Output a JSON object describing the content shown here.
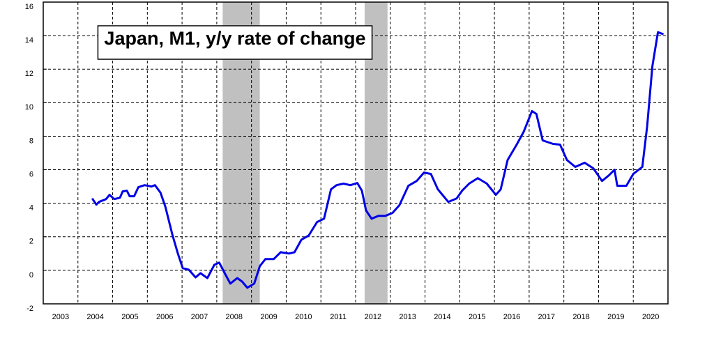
{
  "chart_data": {
    "type": "line",
    "title": "Japan, M1, y/y rate of change",
    "x": [
      2004.41,
      2004.53,
      2004.61,
      2004.81,
      2004.91,
      2005.05,
      2005.21,
      2005.29,
      2005.41,
      2005.49,
      2005.62,
      2005.74,
      2005.92,
      2006.12,
      2006.22,
      2006.38,
      2006.52,
      2006.72,
      2006.88,
      2007.02,
      2007.19,
      2007.39,
      2007.53,
      2007.73,
      2007.93,
      2008.07,
      2008.23,
      2008.39,
      2008.59,
      2008.73,
      2008.88,
      2009.08,
      2009.24,
      2009.4,
      2009.64,
      2009.84,
      2010.08,
      2010.24,
      2010.44,
      2010.65,
      2010.89,
      2011.09,
      2011.29,
      2011.45,
      2011.65,
      2011.85,
      2012.05,
      2012.18,
      2012.3,
      2012.46,
      2012.66,
      2012.86,
      2013.06,
      2013.26,
      2013.52,
      2013.76,
      2013.97,
      2014.17,
      2014.37,
      2014.67,
      2014.91,
      2015.07,
      2015.27,
      2015.52,
      2015.78,
      2016.04,
      2016.18,
      2016.38,
      2016.64,
      2016.84,
      2017.08,
      2017.21,
      2017.39,
      2017.69,
      2017.89,
      2018.09,
      2018.33,
      2018.6,
      2018.85,
      2019.1,
      2019.3,
      2019.46,
      2019.54,
      2019.8,
      2020.0,
      2020.26,
      2020.4,
      2020.55,
      2020.71,
      2020.87
    ],
    "series": [
      {
        "color": "#0000e6",
        "values": [
          4.29,
          3.92,
          4.08,
          4.25,
          4.5,
          4.25,
          4.33,
          4.71,
          4.75,
          4.42,
          4.42,
          4.96,
          5.08,
          5.0,
          5.08,
          4.63,
          3.79,
          2.13,
          1.0,
          0.13,
          0.04,
          -0.42,
          -0.17,
          -0.46,
          0.33,
          0.46,
          -0.17,
          -0.79,
          -0.46,
          -0.67,
          -1.04,
          -0.79,
          0.25,
          0.67,
          0.67,
          1.08,
          1.0,
          1.08,
          1.83,
          2.08,
          2.88,
          3.08,
          4.83,
          5.08,
          5.17,
          5.08,
          5.21,
          4.75,
          3.58,
          3.08,
          3.25,
          3.25,
          3.42,
          3.88,
          5.04,
          5.33,
          5.83,
          5.75,
          4.83,
          4.08,
          4.29,
          4.75,
          5.17,
          5.5,
          5.17,
          4.5,
          4.83,
          6.58,
          7.5,
          8.25,
          9.5,
          9.33,
          7.75,
          7.54,
          7.5,
          6.58,
          6.17,
          6.42,
          6.08,
          5.33,
          5.67,
          6.0,
          5.04,
          5.04,
          5.75,
          6.17,
          8.58,
          12.17,
          14.21,
          14.08
        ]
      }
    ],
    "shaded_periods": [
      [
        2008.17,
        2009.24
      ],
      [
        2012.26,
        2012.92
      ]
    ],
    "shade_color": "#c0c0c0",
    "xlim": [
      2003,
      2021
    ],
    "xticks": [
      2003,
      2004,
      2005,
      2006,
      2007,
      2008,
      2009,
      2010,
      2011,
      2012,
      2013,
      2014,
      2015,
      2016,
      2017,
      2018,
      2019,
      2020
    ],
    "ylim": [
      -2,
      16
    ],
    "yticks": [
      -2,
      0,
      2,
      4,
      6,
      8,
      10,
      12,
      14,
      16
    ],
    "grid": true
  }
}
